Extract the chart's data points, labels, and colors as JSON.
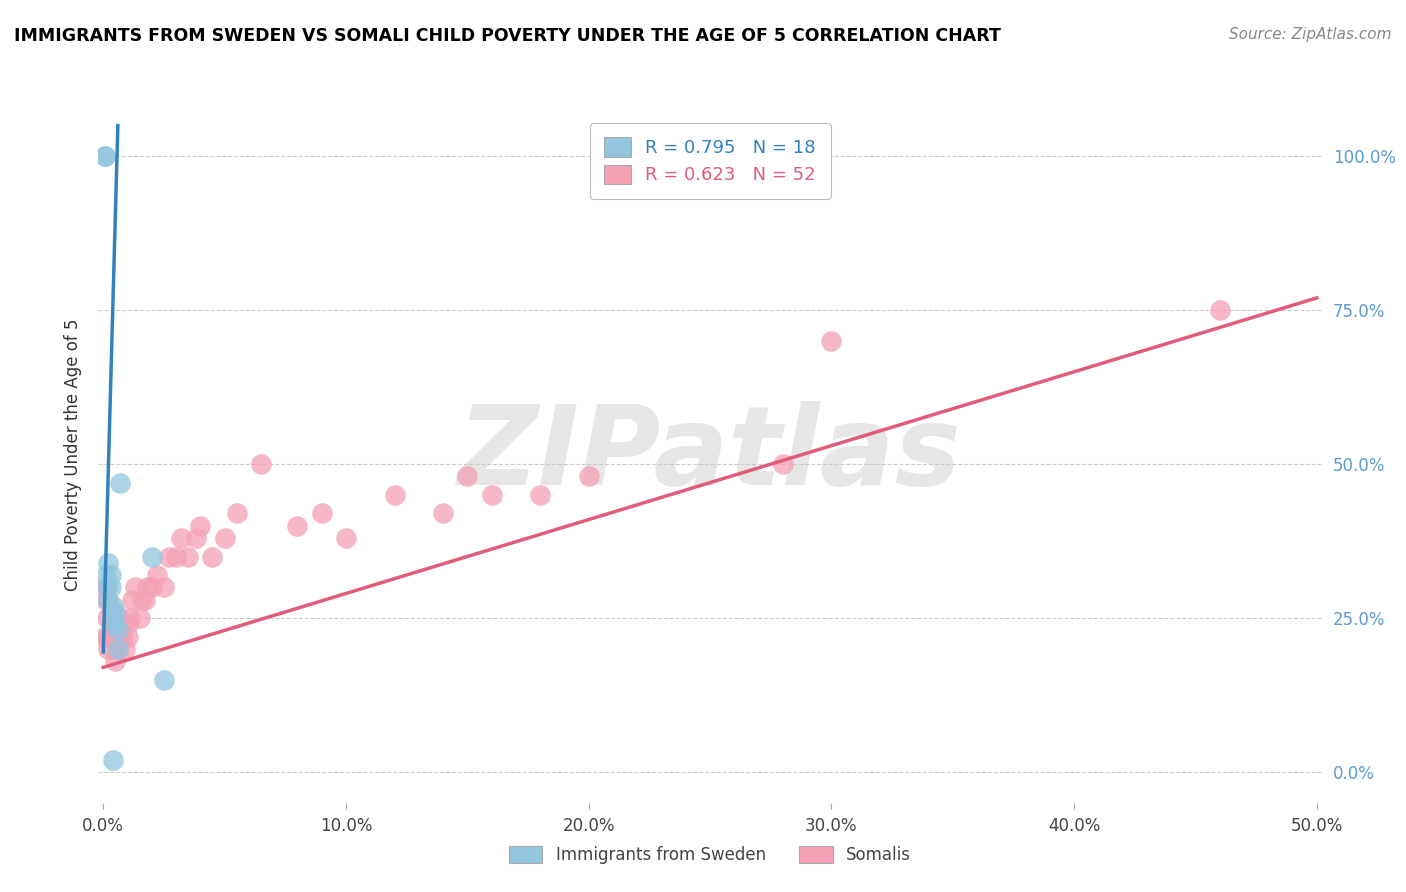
{
  "title": "IMMIGRANTS FROM SWEDEN VS SOMALI CHILD POVERTY UNDER THE AGE OF 5 CORRELATION CHART",
  "source": "Source: ZipAtlas.com",
  "ylabel": "Child Poverty Under the Age of 5",
  "watermark": "ZIPatlas",
  "legend1_label": "R = 0.795   N = 18",
  "legend2_label": "R = 0.623   N = 52",
  "bottom_legend1": "Immigrants from Sweden",
  "bottom_legend2": "Somalis",
  "xlim": [
    -0.002,
    0.502
  ],
  "ylim": [
    -0.05,
    1.08
  ],
  "yticks": [
    0.0,
    0.25,
    0.5,
    0.75,
    1.0
  ],
  "xticks": [
    0.0,
    0.1,
    0.2,
    0.3,
    0.4,
    0.5
  ],
  "blue_color": "#92c5de",
  "pink_color": "#f4a0b5",
  "blue_line_color": "#3182bd",
  "pink_line_color": "#e05c7a",
  "sweden_x": [
    0.0008,
    0.0008,
    0.001,
    0.0015,
    0.002,
    0.002,
    0.003,
    0.003,
    0.004,
    0.004,
    0.005,
    0.005,
    0.006,
    0.006,
    0.007,
    0.02,
    0.025,
    0.004
  ],
  "sweden_y": [
    1.0,
    1.0,
    0.32,
    0.3,
    0.28,
    0.34,
    0.3,
    0.32,
    0.27,
    0.25,
    0.24,
    0.26,
    0.23,
    0.2,
    0.47,
    0.35,
    0.15,
    0.02
  ],
  "somali_x": [
    0.0005,
    0.001,
    0.001,
    0.0015,
    0.002,
    0.002,
    0.003,
    0.003,
    0.004,
    0.004,
    0.005,
    0.005,
    0.006,
    0.007,
    0.007,
    0.008,
    0.008,
    0.009,
    0.01,
    0.01,
    0.011,
    0.012,
    0.013,
    0.015,
    0.016,
    0.017,
    0.018,
    0.02,
    0.022,
    0.025,
    0.027,
    0.03,
    0.032,
    0.035,
    0.038,
    0.04,
    0.045,
    0.05,
    0.055,
    0.065,
    0.08,
    0.09,
    0.1,
    0.12,
    0.14,
    0.15,
    0.16,
    0.18,
    0.2,
    0.28,
    0.3,
    0.46
  ],
  "somali_y": [
    0.22,
    0.28,
    0.3,
    0.25,
    0.2,
    0.22,
    0.24,
    0.26,
    0.2,
    0.22,
    0.18,
    0.22,
    0.2,
    0.22,
    0.25,
    0.22,
    0.24,
    0.2,
    0.22,
    0.24,
    0.25,
    0.28,
    0.3,
    0.25,
    0.28,
    0.28,
    0.3,
    0.3,
    0.32,
    0.3,
    0.35,
    0.35,
    0.38,
    0.35,
    0.38,
    0.4,
    0.35,
    0.38,
    0.42,
    0.5,
    0.4,
    0.42,
    0.38,
    0.45,
    0.42,
    0.48,
    0.45,
    0.45,
    0.48,
    0.5,
    0.7,
    0.75
  ],
  "blue_line_x": [
    0.0,
    0.006
  ],
  "blue_line_y": [
    0.195,
    1.05
  ],
  "pink_line_x": [
    0.0,
    0.5
  ],
  "pink_line_y": [
    0.17,
    0.77
  ]
}
